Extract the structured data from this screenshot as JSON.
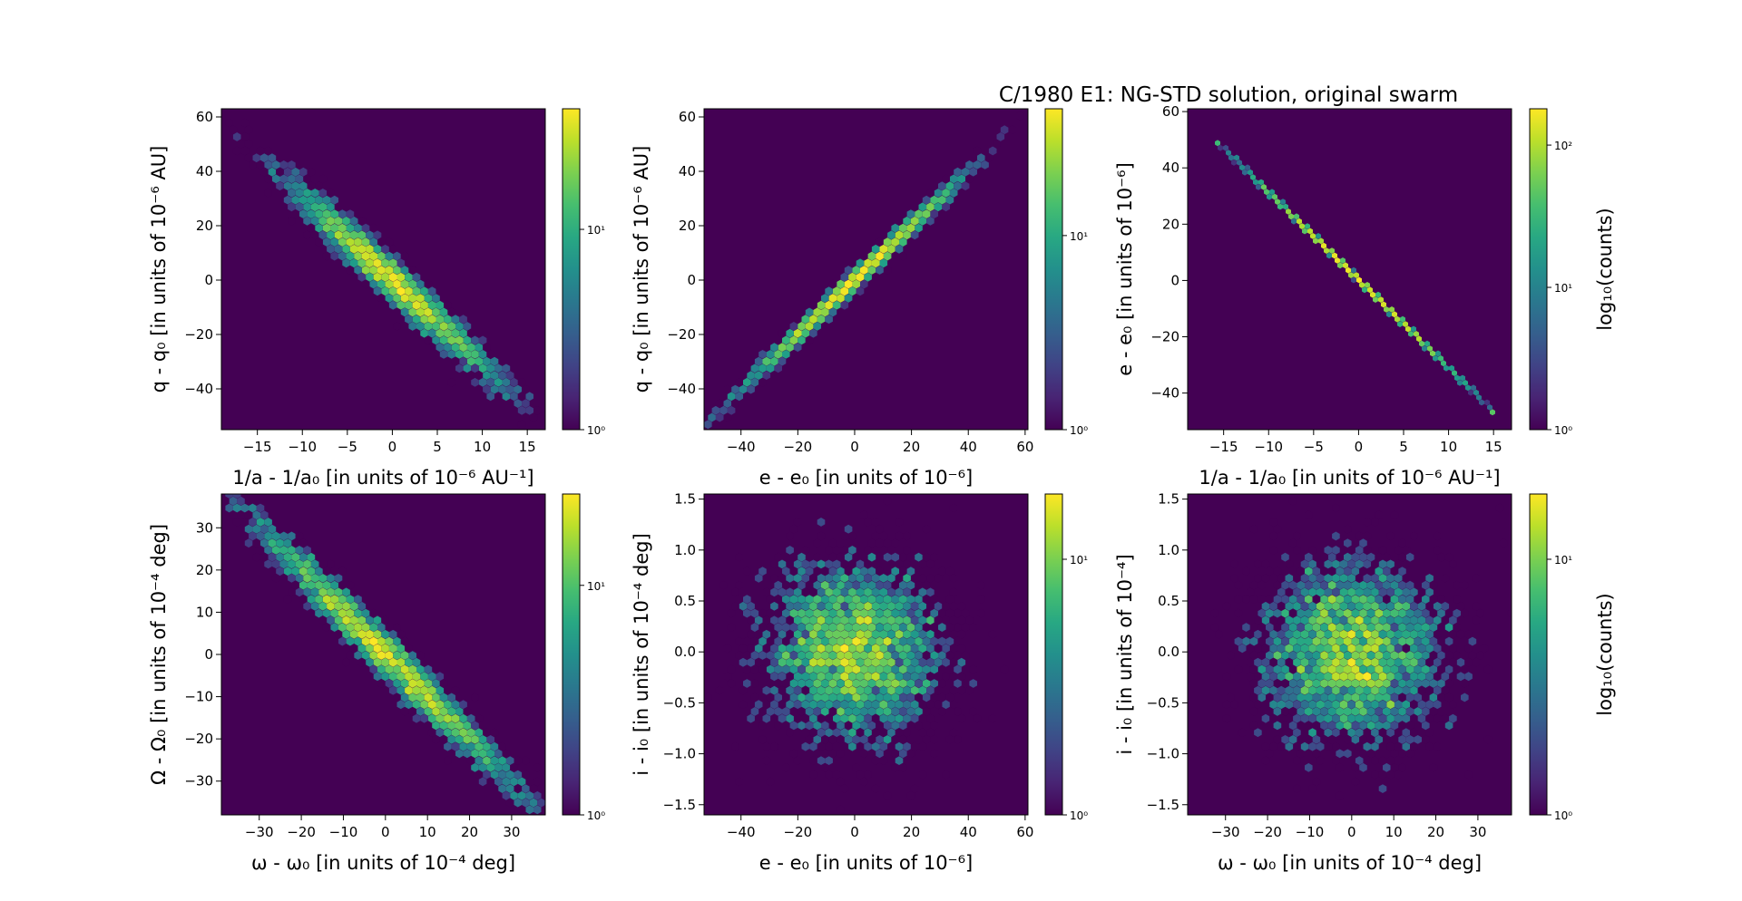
{
  "figure": {
    "title": "C/1980 E1: NG-STD solution, original swarm",
    "background_color": "#440154",
    "colormap": "viridis",
    "colorbar_scale": "log"
  },
  "chart_data": [
    {
      "type": "hexbin",
      "xlabel": "1/a - 1/a₀ [in units of 10⁻⁶ AU⁻¹]",
      "ylabel": "q - q₀ [in units of 10⁻⁶ AU]",
      "xlim": [
        -19,
        17
      ],
      "ylim": [
        -55,
        63
      ],
      "xticks": [
        -15,
        -10,
        -5,
        0,
        5,
        10,
        15
      ],
      "xticklabels": [
        "−15",
        "−10",
        "−5",
        "0",
        "5",
        "10",
        "15"
      ],
      "yticks": [
        -40,
        -20,
        0,
        20,
        40,
        60
      ],
      "yticklabels": [
        "−40",
        "−20",
        "0",
        "20",
        "40",
        "60"
      ],
      "distribution": {
        "shape": "elongated",
        "center": [
          0,
          0
        ],
        "slope": -3.1,
        "sigma_major": 18,
        "sigma_minor": 4.5
      },
      "colorbar": {
        "scale": "log",
        "min": 1,
        "max": 40,
        "ticks": [
          "10⁰",
          "10¹"
        ],
        "label": ""
      }
    },
    {
      "type": "hexbin",
      "xlabel": "e - e₀ [in units of 10⁻⁶]",
      "ylabel": "q - q₀ [in units of 10⁻⁶ AU]",
      "xlim": [
        -53,
        61
      ],
      "ylim": [
        -55,
        63
      ],
      "xticks": [
        -40,
        -20,
        0,
        20,
        40,
        60
      ],
      "xticklabels": [
        "−40",
        "−20",
        "0",
        "20",
        "40",
        "60"
      ],
      "yticks": [
        -40,
        -20,
        0,
        20,
        40,
        60
      ],
      "yticklabels": [
        "−40",
        "−20",
        "0",
        "20",
        "40",
        "60"
      ],
      "distribution": {
        "shape": "elongated",
        "center": [
          0,
          0
        ],
        "slope": 1.0,
        "sigma_major": 18,
        "sigma_minor": 4.5
      },
      "colorbar": {
        "scale": "log",
        "min": 1,
        "max": 45,
        "ticks": [
          "10⁰",
          "10¹"
        ],
        "label": ""
      }
    },
    {
      "type": "hexbin",
      "xlabel": "1/a - 1/a₀ [in units of 10⁻⁶ AU⁻¹]",
      "ylabel": "e - e₀ [in units of 10⁻⁶]",
      "xlim": [
        -19,
        17
      ],
      "ylim": [
        -53,
        61
      ],
      "xticks": [
        -15,
        -10,
        -5,
        0,
        5,
        10,
        15
      ],
      "xticklabels": [
        "−15",
        "−10",
        "−5",
        "0",
        "5",
        "10",
        "15"
      ],
      "yticks": [
        -40,
        -20,
        0,
        20,
        40,
        60
      ],
      "yticklabels": [
        "−40",
        "−20",
        "0",
        "20",
        "40",
        "60"
      ],
      "distribution": {
        "shape": "line",
        "from": [
          -15.5,
          48.5
        ],
        "to": [
          15,
          -46.5
        ]
      },
      "colorbar": {
        "scale": "log",
        "min": 1,
        "max": 180,
        "ticks": [
          "10⁰",
          "10¹",
          "10²"
        ],
        "label": "log₁₀(counts)"
      }
    },
    {
      "type": "hexbin",
      "xlabel": "ω - ω₀ [in units of 10⁻⁴ deg]",
      "ylabel": "Ω - Ω₀ [in units of 10⁻⁴ deg]",
      "xlim": [
        -39,
        38
      ],
      "ylim": [
        -38,
        38
      ],
      "xticks": [
        -30,
        -20,
        -10,
        0,
        10,
        20,
        30
      ],
      "xticklabels": [
        "−30",
        "−20",
        "−10",
        "0",
        "10",
        "20",
        "30"
      ],
      "yticks": [
        -30,
        -20,
        -10,
        0,
        10,
        20,
        30
      ],
      "yticklabels": [
        "−30",
        "−20",
        "−10",
        "0",
        "10",
        "20",
        "30"
      ],
      "distribution": {
        "shape": "elongated",
        "center": [
          0,
          0
        ],
        "slope": -1.0,
        "sigma_major": 16,
        "sigma_minor": 4.5
      },
      "colorbar": {
        "scale": "log",
        "min": 1,
        "max": 25,
        "ticks": [
          "10⁰",
          "10¹"
        ],
        "label": ""
      }
    },
    {
      "type": "hexbin",
      "xlabel": "e - e₀ [in units of 10⁻⁶]",
      "ylabel": "i - i₀ [in units of 10⁻⁴ deg]",
      "xlim": [
        -53,
        61
      ],
      "ylim": [
        -1.6,
        1.55
      ],
      "xticks": [
        -40,
        -20,
        0,
        20,
        40,
        60
      ],
      "xticklabels": [
        "−40",
        "−20",
        "0",
        "20",
        "40",
        "60"
      ],
      "yticks": [
        -1.5,
        -1.0,
        -0.5,
        0.0,
        0.5,
        1.0,
        1.5
      ],
      "yticklabels": [
        "−1.5",
        "−1.0",
        "−0.5",
        "0.0",
        "0.5",
        "1.0",
        "1.5"
      ],
      "distribution": {
        "shape": "round",
        "center": [
          0,
          0
        ],
        "sigma_x": 16,
        "sigma_y": 0.45
      },
      "colorbar": {
        "scale": "log",
        "min": 1,
        "max": 18,
        "ticks": [
          "10⁰",
          "10¹"
        ],
        "label": ""
      }
    },
    {
      "type": "hexbin",
      "xlabel": "ω - ω₀ [in units of 10⁻⁴ deg]",
      "ylabel": "i - i₀ [in units of 10⁻⁴]",
      "xlim": [
        -39,
        38
      ],
      "ylim": [
        -1.6,
        1.55
      ],
      "xticks": [
        -30,
        -20,
        -10,
        0,
        10,
        20,
        30
      ],
      "xticklabels": [
        "−30",
        "−20",
        "−10",
        "0",
        "10",
        "20",
        "30"
      ],
      "yticks": [
        -1.5,
        -1.0,
        -0.5,
        0.0,
        0.5,
        1.0,
        1.5
      ],
      "yticklabels": [
        "−1.5",
        "−1.0",
        "−0.5",
        "0.0",
        "0.5",
        "1.0",
        "1.5"
      ],
      "distribution": {
        "shape": "round",
        "center": [
          0,
          0
        ],
        "sigma_x": 11,
        "sigma_y": 0.45
      },
      "colorbar": {
        "scale": "log",
        "min": 1,
        "max": 18,
        "ticks": [
          "10⁰",
          "10¹"
        ],
        "label": "log₁₀(counts)"
      }
    }
  ]
}
